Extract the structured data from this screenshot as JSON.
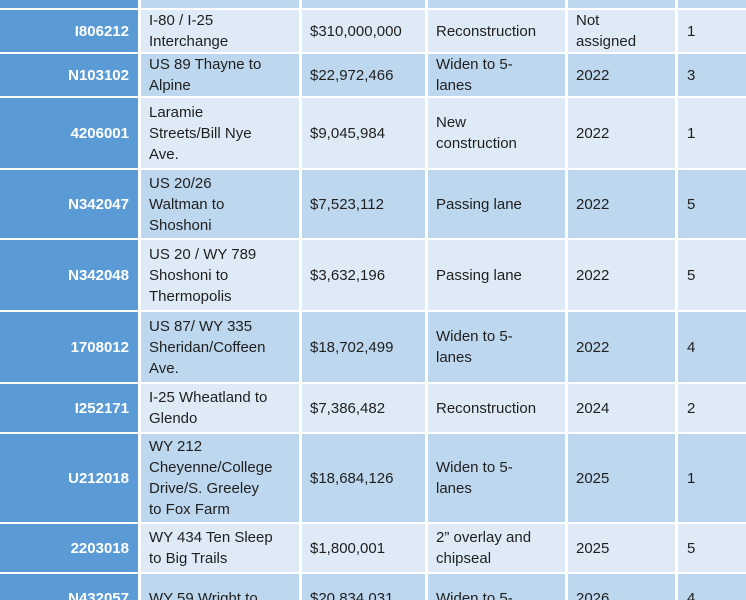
{
  "colors": {
    "id_column_bg": "#5B9BD5",
    "band_light": "#DEEBF7",
    "band_medium": "#BDD7EE",
    "border": "#FFFFFF",
    "body_text": "#1F1F1F",
    "id_text": "#FFFFFF"
  },
  "table": {
    "rows": [
      {
        "id": "",
        "description": "",
        "cost": "",
        "work_type": "",
        "year": "",
        "district": ""
      },
      {
        "id": "I806212",
        "description": "I-80 / I-25\nInterchange",
        "cost": "$310,000,000",
        "work_type": "Reconstruction",
        "year": "Not\nassigned",
        "district": "1"
      },
      {
        "id": "N103102",
        "description": "US 89 Thayne to\nAlpine",
        "cost": "$22,972,466",
        "work_type": "Widen to 5-\nlanes",
        "year": "2022",
        "district": "3"
      },
      {
        "id": "4206001",
        "description": "Laramie\nStreets/Bill Nye\nAve.",
        "cost": "$9,045,984",
        "work_type": "New\nconstruction",
        "year": "2022",
        "district": "1"
      },
      {
        "id": "N342047",
        "description": "US 20/26\nWaltman to\nShoshoni",
        "cost": "$7,523,112",
        "work_type": "Passing lane",
        "year": "2022",
        "district": "5"
      },
      {
        "id": "N342048",
        "description": "US 20 / WY 789\nShoshoni to\nThermopolis",
        "cost": "$3,632,196",
        "work_type": "Passing lane",
        "year": "2022",
        "district": "5"
      },
      {
        "id": "1708012",
        "description": "US 87/ WY 335\nSheridan/Coffeen\nAve.",
        "cost": "$18,702,499",
        "work_type": "Widen to 5-\nlanes",
        "year": "2022",
        "district": "4"
      },
      {
        "id": "I252171",
        "description": "I-25 Wheatland to\nGlendo",
        "cost": "$7,386,482",
        "work_type": "Reconstruction",
        "year": "2024",
        "district": "2"
      },
      {
        "id": "U212018",
        "description": "WY 212\nCheyenne/College\nDrive/S. Greeley\nto Fox Farm",
        "cost": "$18,684,126",
        "work_type": "Widen to 5-\nlanes",
        "year": "2025",
        "district": "1"
      },
      {
        "id": "2203018",
        "description": "WY 434 Ten Sleep\nto Big Trails",
        "cost": "$1,800,001",
        "work_type": "2” overlay and\nchipseal",
        "year": "2025",
        "district": "5"
      },
      {
        "id": "N432057",
        "description": "WY 59 Wright to",
        "cost": "$20,834,031",
        "work_type": "Widen to 5-",
        "year": "2026",
        "district": "4"
      }
    ]
  }
}
